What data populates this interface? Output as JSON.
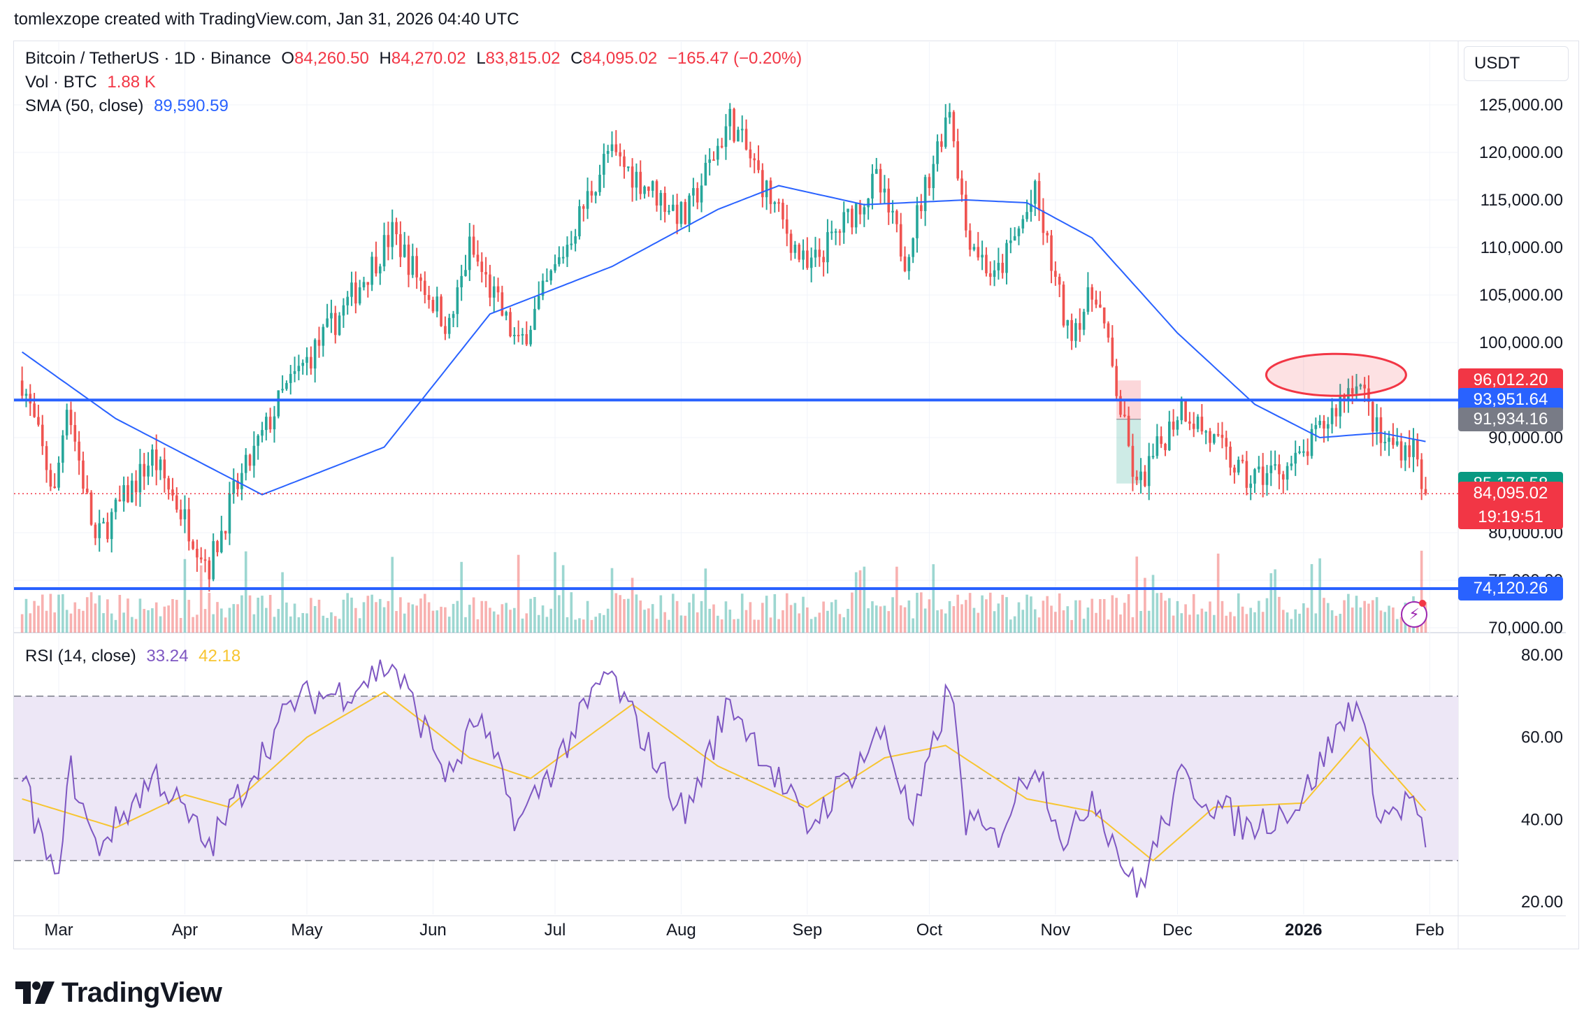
{
  "header": {
    "attribution": "tomlexzope created with TradingView.com, Jan 31, 2026 04:40 UTC"
  },
  "legend": {
    "symbol": "Bitcoin / TetherUS · 1D · Binance",
    "o_label": "O",
    "o_value": "84,260.50",
    "h_label": "H",
    "h_value": "84,270.02",
    "l_label": "L",
    "l_value": "83,815.02",
    "c_label": "C",
    "c_value": "84,095.02",
    "change": "−165.47 (−0.20%)",
    "vol_label": "Vol · BTC",
    "vol_value": "1.88 K",
    "sma_label": "SMA (50, close)",
    "sma_value": "89,590.59",
    "rsi_label": "RSI (14, close)",
    "rsi_value": "33.24",
    "rsi_ma_value": "42.18"
  },
  "currency": "USDT",
  "price_tags": {
    "red_level": "96,012.20",
    "sma_level": "93,951.64",
    "gray_level": "91,934.16",
    "green_level": "85,170.58",
    "last_price": "84,095.02",
    "countdown": "19:19:51",
    "support_level": "74,120.26"
  },
  "brand": {
    "name": "TradingView"
  },
  "colors": {
    "up": "#26a69a",
    "down": "#ef5350",
    "sma": "#2962ff",
    "hline": "#2962ff",
    "rsi": "#7e57c2",
    "rsi_ma": "#f7c530",
    "rsi_band": "#ede7f6",
    "ellipse": "#f23645"
  },
  "chart_data": {
    "type": "candlestick",
    "title": "Bitcoin / TetherUS · 1D · Binance",
    "x_tick_labels": [
      "Mar",
      "Apr",
      "May",
      "Jun",
      "Jul",
      "Aug",
      "Sep",
      "Oct",
      "Nov",
      "Dec",
      "2026",
      "Feb"
    ],
    "y_tick_labels": [
      "125,000.00",
      "120,000.00",
      "115,000.00",
      "110,000.00",
      "105,000.00",
      "100,000.00",
      "90,000.00",
      "80,000.00",
      "75,000.00",
      "70,000.00"
    ],
    "y_ticks": [
      125000,
      120000,
      115000,
      110000,
      105000,
      100000,
      90000,
      80000,
      75000,
      70000
    ],
    "ylim": [
      70000,
      128000
    ],
    "price_path_keypoints": [
      {
        "date": "2025-02-20",
        "close": 96000
      },
      {
        "date": "2025-02-28",
        "close": 84000
      },
      {
        "date": "2025-03-03",
        "close": 94000
      },
      {
        "date": "2025-03-10",
        "close": 79000
      },
      {
        "date": "2025-03-24",
        "close": 88000
      },
      {
        "date": "2025-04-07",
        "close": 76500
      },
      {
        "date": "2025-04-13",
        "close": 84000
      },
      {
        "date": "2025-04-25",
        "close": 94500
      },
      {
        "date": "2025-05-10",
        "close": 103500
      },
      {
        "date": "2025-05-22",
        "close": 111500
      },
      {
        "date": "2025-06-05",
        "close": 101500
      },
      {
        "date": "2025-06-10",
        "close": 110000
      },
      {
        "date": "2025-06-22",
        "close": 99500
      },
      {
        "date": "2025-07-03",
        "close": 109500
      },
      {
        "date": "2025-07-14",
        "close": 120000
      },
      {
        "date": "2025-08-02",
        "close": 113000
      },
      {
        "date": "2025-08-13",
        "close": 123500
      },
      {
        "date": "2025-09-01",
        "close": 107500
      },
      {
        "date": "2025-09-18",
        "close": 117000
      },
      {
        "date": "2025-09-25",
        "close": 109000
      },
      {
        "date": "2025-10-06",
        "close": 125000
      },
      {
        "date": "2025-10-10",
        "close": 112000
      },
      {
        "date": "2025-10-17",
        "close": 106500
      },
      {
        "date": "2025-10-27",
        "close": 115500
      },
      {
        "date": "2025-11-04",
        "close": 101000
      },
      {
        "date": "2025-11-11",
        "close": 105500
      },
      {
        "date": "2025-11-21",
        "close": 84500
      },
      {
        "date": "2025-12-02",
        "close": 93500
      },
      {
        "date": "2025-12-18",
        "close": 85500
      },
      {
        "date": "2025-12-31",
        "close": 87500
      },
      {
        "date": "2026-01-14",
        "close": 96500
      },
      {
        "date": "2026-01-20",
        "close": 89500
      },
      {
        "date": "2026-01-28",
        "close": 89000
      },
      {
        "date": "2026-01-31",
        "close": 84095
      }
    ],
    "sma_50_keypoints": [
      {
        "date": "2025-02-20",
        "value": 99000
      },
      {
        "date": "2025-03-15",
        "value": 92000
      },
      {
        "date": "2025-04-20",
        "value": 84000
      },
      {
        "date": "2025-05-20",
        "value": 89000
      },
      {
        "date": "2025-06-15",
        "value": 103000
      },
      {
        "date": "2025-07-15",
        "value": 108000
      },
      {
        "date": "2025-08-10",
        "value": 114000
      },
      {
        "date": "2025-08-25",
        "value": 116500
      },
      {
        "date": "2025-09-15",
        "value": 114500
      },
      {
        "date": "2025-10-10",
        "value": 115000
      },
      {
        "date": "2025-10-25",
        "value": 114700
      },
      {
        "date": "2025-11-10",
        "value": 111000
      },
      {
        "date": "2025-12-01",
        "value": 101000
      },
      {
        "date": "2025-12-20",
        "value": 93500
      },
      {
        "date": "2026-01-05",
        "value": 90000
      },
      {
        "date": "2026-01-20",
        "value": 90500
      },
      {
        "date": "2026-01-31",
        "value": 89590.59
      }
    ],
    "horizontal_lines": [
      93951.64,
      74120.26
    ],
    "last_price_line": 84095.02,
    "rsi": {
      "label": "RSI (14, close)",
      "y_tick_labels": [
        "80.00",
        "60.00",
        "40.00",
        "20.00"
      ],
      "y_ticks": [
        80,
        60,
        40,
        20
      ],
      "ylim": [
        18,
        82
      ],
      "bands": [
        70,
        50,
        30
      ],
      "last": 33.24,
      "ma_last": 42.18,
      "rsi_keypoints": [
        {
          "date": "2025-02-20",
          "value": 51
        },
        {
          "date": "2025-02-28",
          "value": 24
        },
        {
          "date": "2025-03-04",
          "value": 52
        },
        {
          "date": "2025-03-10",
          "value": 33
        },
        {
          "date": "2025-03-25",
          "value": 51
        },
        {
          "date": "2025-04-07",
          "value": 33
        },
        {
          "date": "2025-04-20",
          "value": 56
        },
        {
          "date": "2025-04-28",
          "value": 69
        },
        {
          "date": "2025-05-10",
          "value": 71
        },
        {
          "date": "2025-05-22",
          "value": 78
        },
        {
          "date": "2025-06-05",
          "value": 50
        },
        {
          "date": "2025-06-12",
          "value": 65
        },
        {
          "date": "2025-06-22",
          "value": 39
        },
        {
          "date": "2025-07-03",
          "value": 57
        },
        {
          "date": "2025-07-14",
          "value": 76
        },
        {
          "date": "2025-08-02",
          "value": 41
        },
        {
          "date": "2025-08-13",
          "value": 69
        },
        {
          "date": "2025-09-01",
          "value": 38
        },
        {
          "date": "2025-09-20",
          "value": 62
        },
        {
          "date": "2025-09-27",
          "value": 38
        },
        {
          "date": "2025-10-06",
          "value": 73
        },
        {
          "date": "2025-10-10",
          "value": 40
        },
        {
          "date": "2025-10-17",
          "value": 35
        },
        {
          "date": "2025-10-27",
          "value": 55
        },
        {
          "date": "2025-11-04",
          "value": 33
        },
        {
          "date": "2025-11-10",
          "value": 47
        },
        {
          "date": "2025-11-21",
          "value": 22
        },
        {
          "date": "2025-12-02",
          "value": 50
        },
        {
          "date": "2025-12-18",
          "value": 38
        },
        {
          "date": "2025-12-31",
          "value": 44
        },
        {
          "date": "2026-01-14",
          "value": 70
        },
        {
          "date": "2026-01-20",
          "value": 40
        },
        {
          "date": "2026-01-28",
          "value": 45
        },
        {
          "date": "2026-01-31",
          "value": 33.24
        }
      ],
      "rsi_ma_keypoints": [
        {
          "date": "2025-02-20",
          "value": 45
        },
        {
          "date": "2025-03-15",
          "value": 38
        },
        {
          "date": "2025-04-01",
          "value": 46
        },
        {
          "date": "2025-04-12",
          "value": 43
        },
        {
          "date": "2025-05-01",
          "value": 60
        },
        {
          "date": "2025-05-20",
          "value": 71
        },
        {
          "date": "2025-06-10",
          "value": 55
        },
        {
          "date": "2025-06-25",
          "value": 50
        },
        {
          "date": "2025-07-20",
          "value": 68
        },
        {
          "date": "2025-08-10",
          "value": 53
        },
        {
          "date": "2025-09-01",
          "value": 43
        },
        {
          "date": "2025-09-20",
          "value": 55
        },
        {
          "date": "2025-10-05",
          "value": 58
        },
        {
          "date": "2025-10-25",
          "value": 45
        },
        {
          "date": "2025-11-10",
          "value": 42
        },
        {
          "date": "2025-11-25",
          "value": 30
        },
        {
          "date": "2025-12-10",
          "value": 43
        },
        {
          "date": "2026-01-01",
          "value": 44
        },
        {
          "date": "2026-01-15",
          "value": 60
        },
        {
          "date": "2026-01-31",
          "value": 42.18
        }
      ]
    },
    "legend_position": "top-left",
    "grid": true
  }
}
